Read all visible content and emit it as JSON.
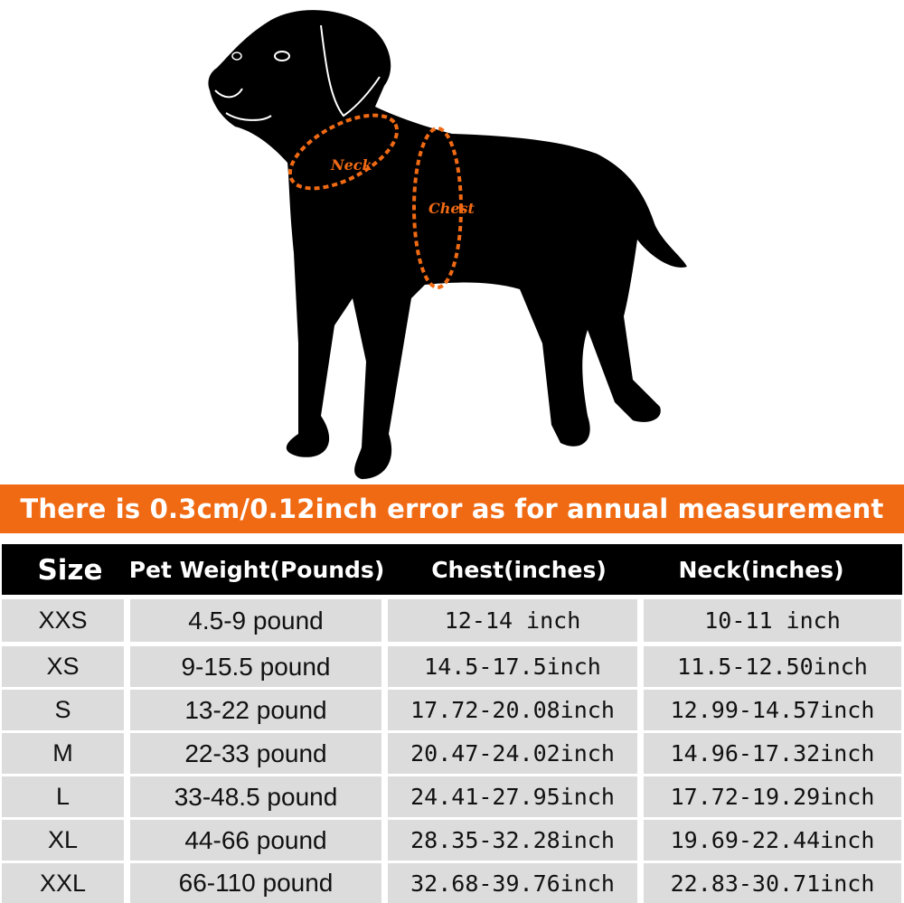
{
  "illustration": {
    "labels": {
      "neck": "Neck",
      "chest": "Chest"
    },
    "accent_color": "#f06a14"
  },
  "banner": {
    "text": "There is 0.3cm/0.12inch error as for annual measurement"
  },
  "table": {
    "headers": [
      "Size",
      "Pet Weight(Pounds)",
      "Chest(inches)",
      "Neck(inches)"
    ],
    "rows": [
      [
        "XXS",
        "4.5-9 pound",
        "12-14 inch",
        "10-11 inch"
      ],
      [
        "XS",
        "9-15.5 pound",
        "14.5-17.5inch",
        "11.5-12.50inch"
      ],
      [
        "S",
        "13-22 pound",
        "17.72-20.08inch",
        "12.99-14.57inch"
      ],
      [
        "M",
        "22-33 pound",
        "20.47-24.02inch",
        "14.96-17.32inch"
      ],
      [
        "L",
        "33-48.5 pound",
        "24.41-27.95inch",
        "17.72-19.29inch"
      ],
      [
        "XL",
        "44-66 pound",
        "28.35-32.28inch",
        "19.69-22.44inch"
      ],
      [
        "XXL",
        "66-110 pound",
        "32.68-39.76inch",
        "22.83-30.71inch"
      ]
    ]
  }
}
